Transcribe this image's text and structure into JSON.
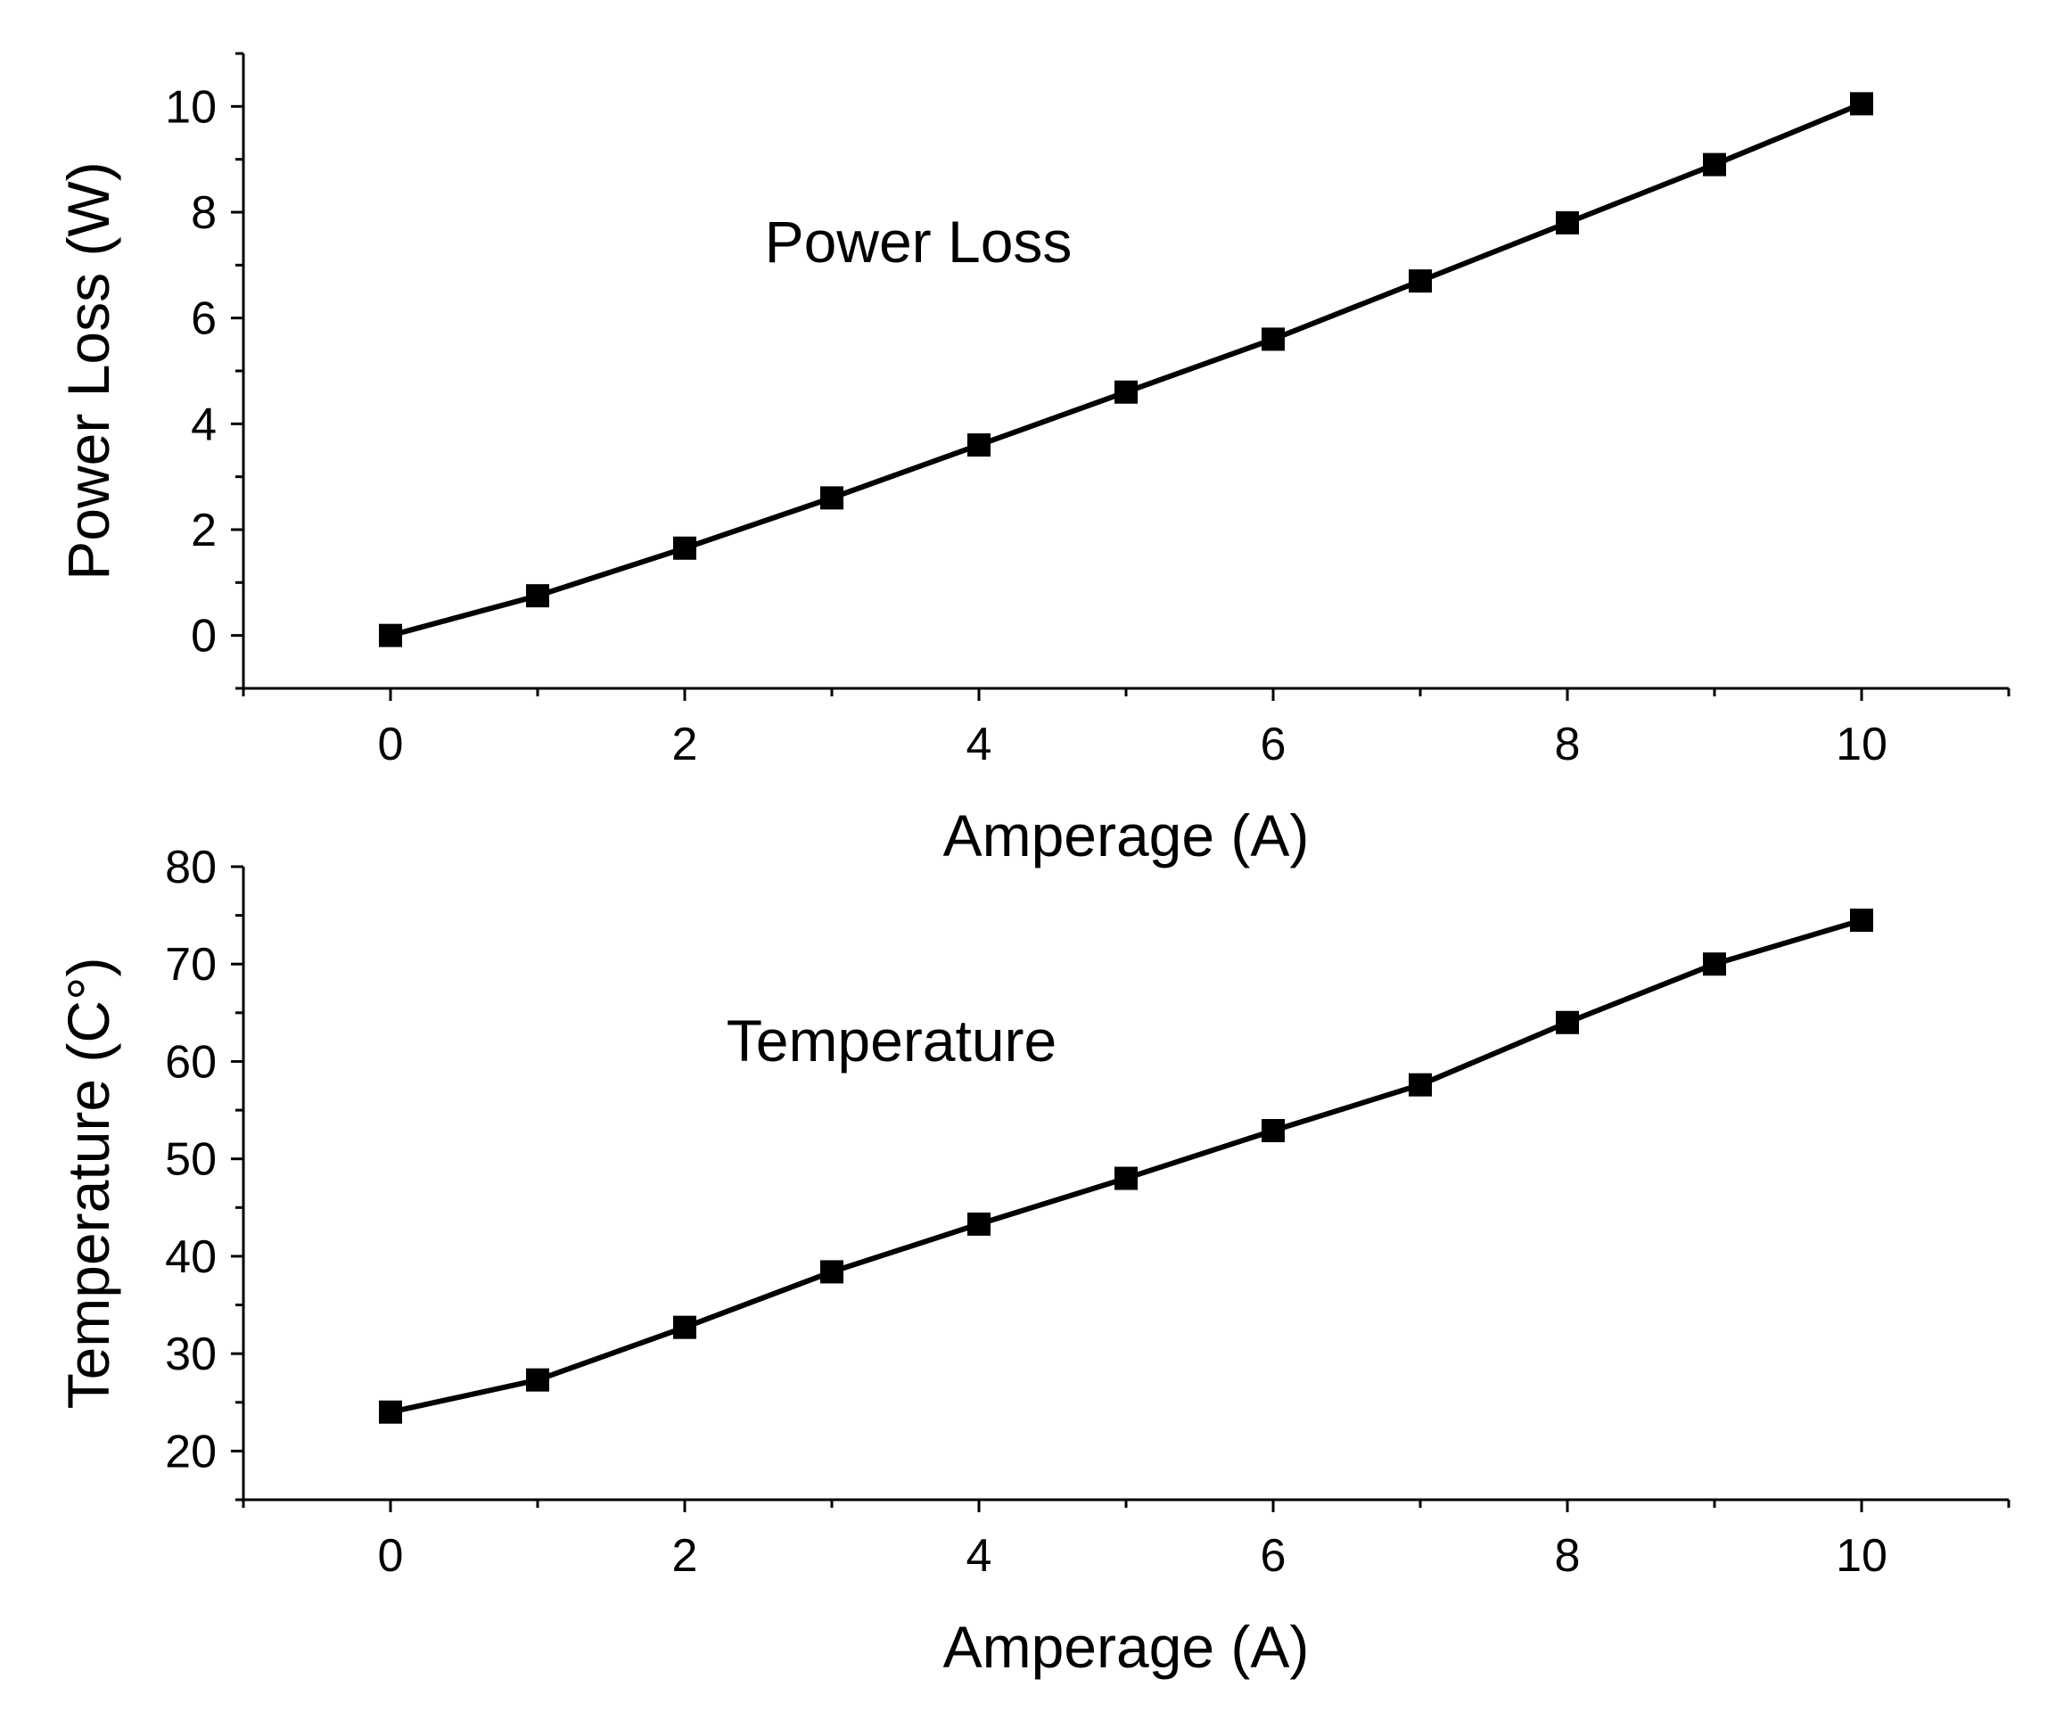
{
  "chart_data": [
    {
      "type": "line",
      "id": "power",
      "annotation": "Power Loss",
      "xlabel": "Amperage (A)",
      "ylabel": "Power Loss (W)",
      "xlim": [
        -1,
        11
      ],
      "ylim": [
        -1,
        11
      ],
      "x_ticks": [
        0,
        2,
        4,
        6,
        8,
        10
      ],
      "y_ticks": [
        0,
        2,
        4,
        6,
        8,
        10
      ],
      "series": [
        {
          "name": "Power Loss",
          "marker": "square",
          "color": "#000000",
          "x": [
            0,
            1,
            2,
            3,
            4,
            5,
            6,
            7,
            8,
            9,
            10
          ],
          "y": [
            0,
            0.75,
            1.65,
            2.6,
            3.6,
            4.6,
            5.6,
            6.7,
            7.8,
            8.9,
            10.05
          ]
        }
      ]
    },
    {
      "type": "line",
      "id": "temperature",
      "annotation": "Temperature",
      "xlabel": "Amperage (A)",
      "ylabel": "Temperature (C°)",
      "xlim": [
        -1,
        11
      ],
      "ylim": [
        15,
        80
      ],
      "x_ticks": [
        0,
        2,
        4,
        6,
        8,
        10
      ],
      "y_ticks": [
        20,
        30,
        40,
        50,
        60,
        70,
        80
      ],
      "series": [
        {
          "name": "Temperature",
          "marker": "square",
          "color": "#000000",
          "x": [
            0,
            1,
            2,
            3,
            4,
            5,
            6,
            7,
            8,
            9,
            10
          ],
          "y": [
            24,
            27.3,
            32.7,
            38.4,
            43.3,
            48,
            52.9,
            57.6,
            64,
            70,
            74.5
          ]
        }
      ]
    }
  ]
}
